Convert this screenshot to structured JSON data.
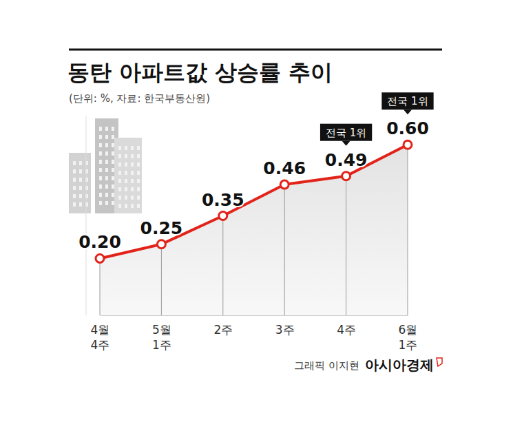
{
  "chart_data": {
    "type": "line",
    "title": "동탄 아파트값 상승률 추이",
    "subtitle": "(단위: %, 자료: 한국부동산원)",
    "categories": [
      "4월 4주",
      "5월 1주",
      "2주",
      "3주",
      "4주",
      "6월 1주"
    ],
    "values": [
      0.2,
      0.25,
      0.35,
      0.46,
      0.49,
      0.6
    ],
    "value_labels": [
      "0.20",
      "0.25",
      "0.35",
      "0.46",
      "0.49",
      "0.60"
    ],
    "ylim": [
      0,
      0.7
    ],
    "color": "#e2231a",
    "marker": "circle",
    "data_labels": true,
    "tick_labels": "x",
    "annotations": [
      {
        "text": "전국 1위",
        "category": "4주"
      },
      {
        "text": "전국 1위",
        "category": "6월 1주"
      }
    ],
    "credit": "그래픽 이지현",
    "publisher": "아시아경제"
  }
}
